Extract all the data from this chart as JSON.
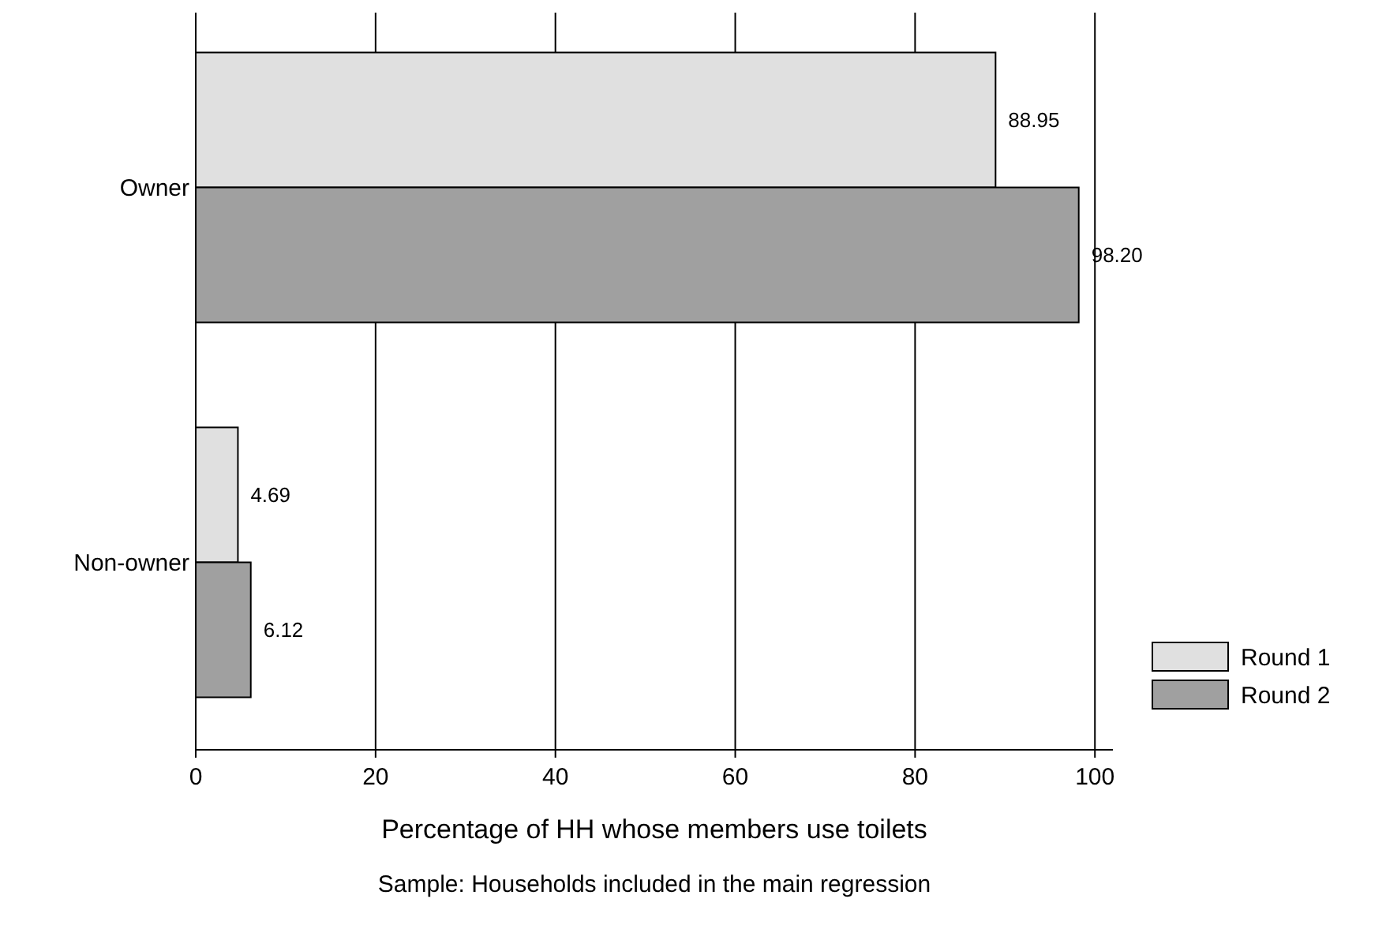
{
  "chart_data": {
    "type": "bar",
    "orientation": "horizontal",
    "categories": [
      "Owner",
      "Non-owner"
    ],
    "series": [
      {
        "name": "Round 1",
        "color": "#e0e0e0",
        "values": [
          88.95,
          4.69
        ]
      },
      {
        "name": "Round 2",
        "color": "#a0a0a0",
        "values": [
          98.2,
          6.12
        ]
      }
    ],
    "value_labels": [
      [
        "88.95",
        "4.69"
      ],
      [
        "98.20",
        "6.12"
      ]
    ],
    "xlim": [
      0,
      102
    ],
    "xticks": [
      0,
      20,
      40,
      60,
      80,
      100
    ],
    "grid": "x",
    "legend": "bottom right",
    "xlabel": "Percentage of HH whose members use toilets",
    "annotations": [
      "Sample: Households included in the main regression"
    ]
  }
}
